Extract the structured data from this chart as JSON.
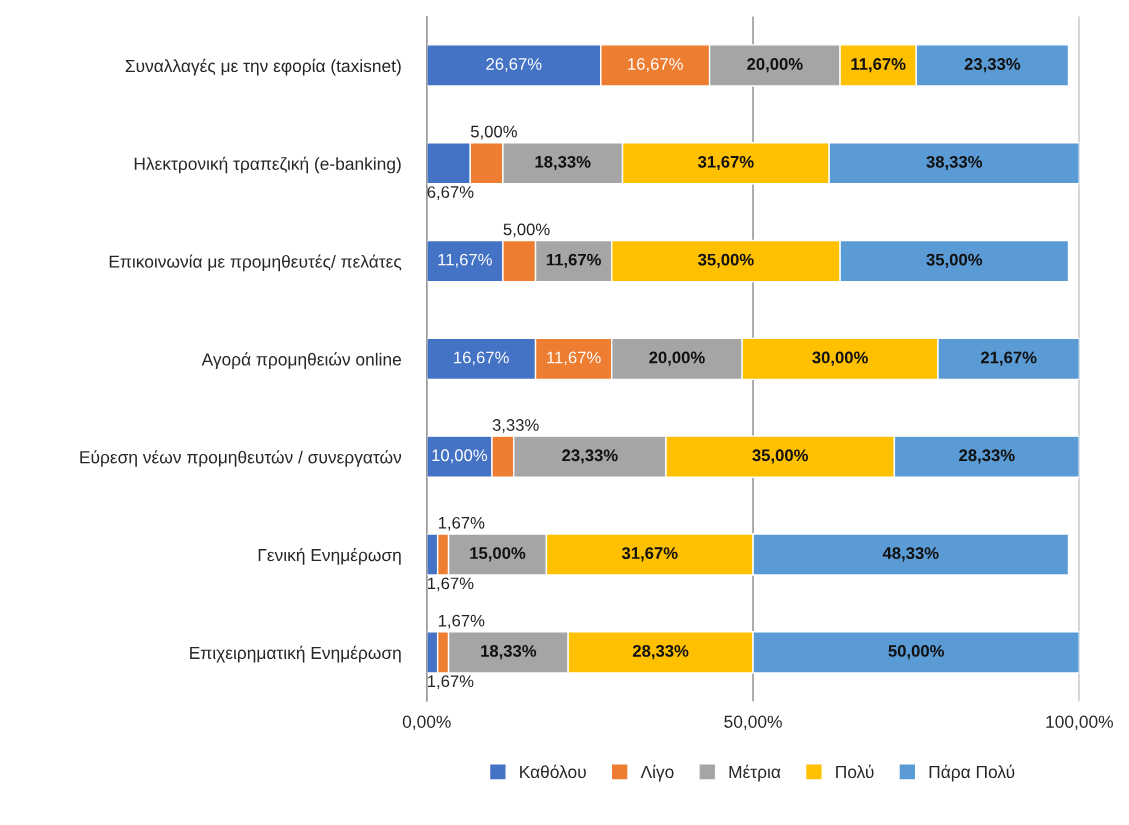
{
  "chart_data": {
    "type": "bar",
    "orientation": "horizontal",
    "stacked": true,
    "data_labels": true,
    "categories": [
      "Συναλλαγές με την εφορία (taxisnet)",
      "Ηλεκτρονική τραπεζική (e-banking)",
      "Επικοινωνία με προμηθευτές/ πελάτες",
      "Αγορά προμηθειών online",
      "Εύρεση νέων προμηθευτών / συνεργατών",
      "Γενική Ενημέρωση",
      "Επιχειρηματική Ενημέρωση"
    ],
    "series": [
      {
        "name": "Καθόλου",
        "color": "#4472c4",
        "values": [
          26.67,
          6.67,
          11.67,
          16.67,
          10.0,
          1.67,
          1.67
        ],
        "value_labels": [
          "26,67%",
          "6,67%",
          "11,67%",
          "16,67%",
          "10,00%",
          "1,67%",
          "1,67%"
        ]
      },
      {
        "name": "Λίγο",
        "color": "#ed7d31",
        "values": [
          16.67,
          5.0,
          5.0,
          11.67,
          3.33,
          1.67,
          1.67
        ],
        "value_labels": [
          "16,67%",
          "5,00%",
          "5,00%",
          "11,67%",
          "3,33%",
          "1,67%",
          "1,67%"
        ]
      },
      {
        "name": "Μέτρια",
        "color": "#a5a5a5",
        "values": [
          20.0,
          18.33,
          11.67,
          20.0,
          23.33,
          15.0,
          18.33
        ],
        "value_labels": [
          "20,00%",
          "18,33%",
          "11,67%",
          "20,00%",
          "23,33%",
          "15,00%",
          "18,33%"
        ]
      },
      {
        "name": "Πολύ",
        "color": "#ffc000",
        "values": [
          11.67,
          31.67,
          35.0,
          30.0,
          35.0,
          31.67,
          28.33
        ],
        "value_labels": [
          "11,67%",
          "31,67%",
          "35,00%",
          "30,00%",
          "35,00%",
          "31,67%",
          "28,33%"
        ]
      },
      {
        "name": "Πάρα Πολύ",
        "color": "#5b9bd5",
        "values": [
          23.33,
          38.33,
          35.0,
          21.67,
          28.33,
          48.33,
          50.0
        ],
        "value_labels": [
          "23,33%",
          "38,33%",
          "35,00%",
          "21,67%",
          "28,33%",
          "48,33%",
          "50,00%"
        ]
      }
    ],
    "xlim": [
      0,
      100
    ],
    "xticks": [
      {
        "value": 0,
        "label": "0,00%"
      },
      {
        "value": 50,
        "label": "50,00%"
      },
      {
        "value": 100,
        "label": "100,00%"
      }
    ],
    "grid": "x",
    "legend": "bottom"
  }
}
